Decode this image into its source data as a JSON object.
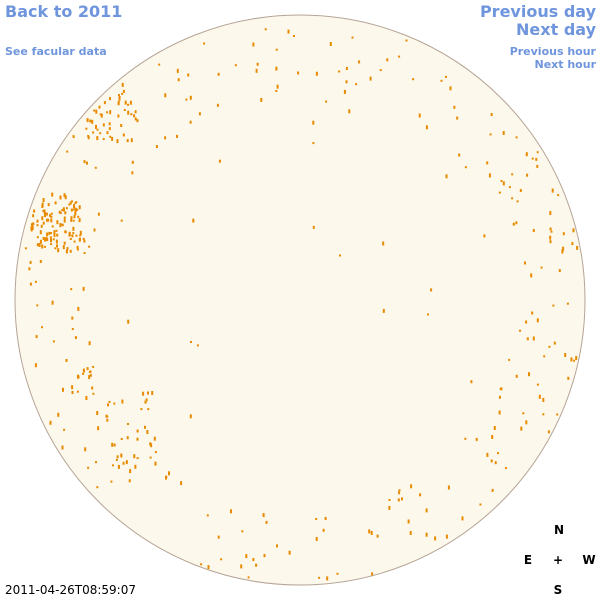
{
  "nav": {
    "back": "Back to 2011",
    "facular": "See facular data",
    "previous_day": "Previous day",
    "next_day": "Next day",
    "previous_hour": "Previous hour",
    "next_hour": "Next hour"
  },
  "timestamp": "2011-04-26T08:59:07",
  "compass": {
    "north": "N",
    "east": "E",
    "center": "+",
    "west": "W",
    "south": "S"
  }
}
